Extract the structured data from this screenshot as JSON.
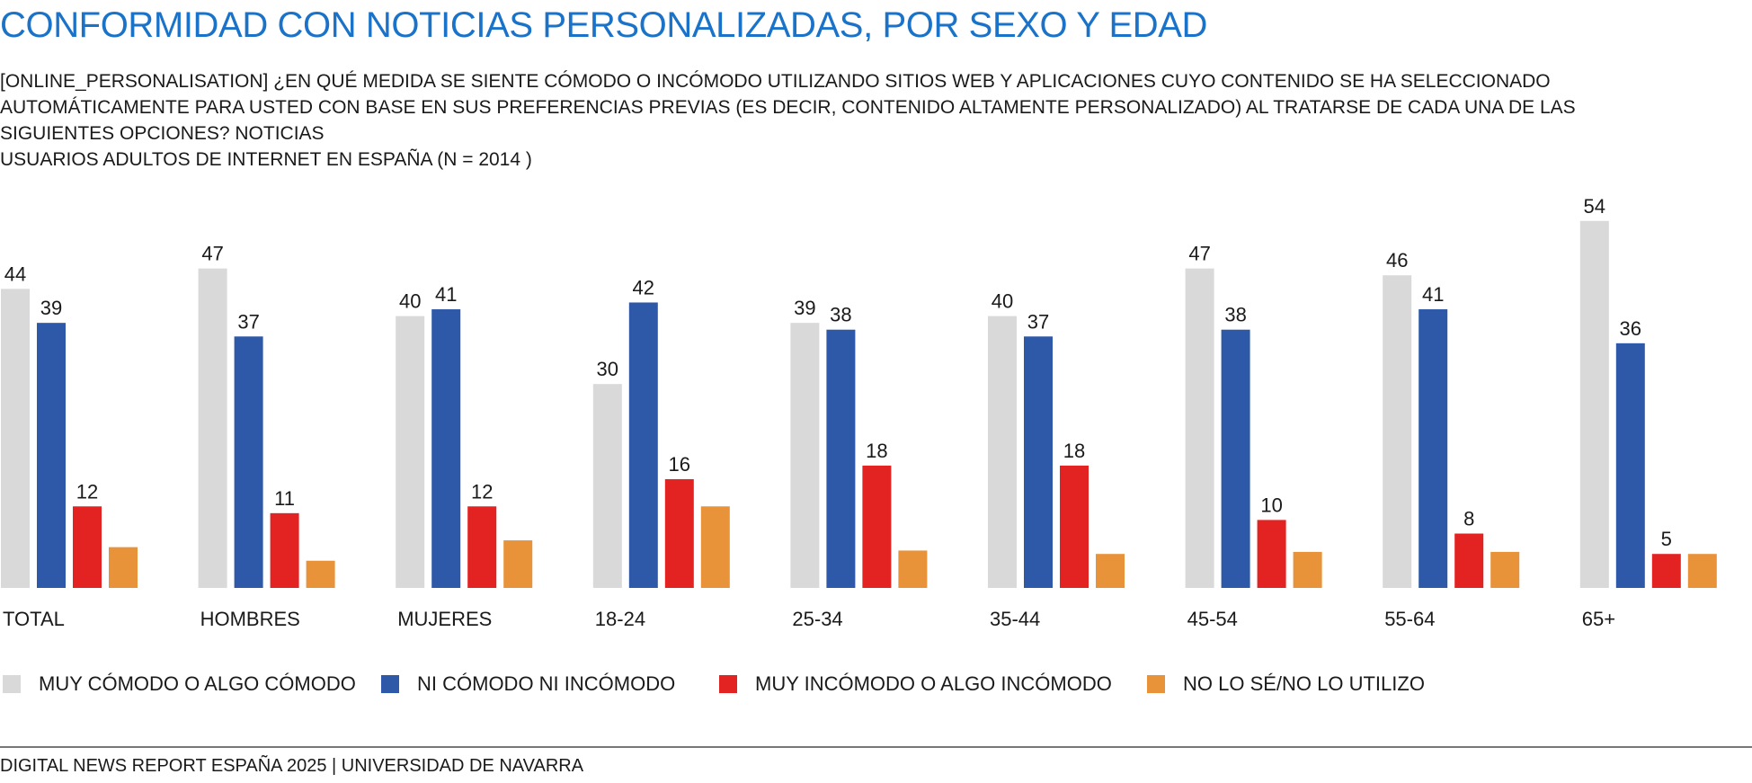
{
  "title": "CONFORMIDAD CON NOTICIAS PERSONALIZADAS, POR SEXO Y EDAD",
  "subtitle_lines": [
    "[ONLINE_PERSONALISATION] ¿EN QUÉ MEDIDA SE SIENTE CÓMODO O INCÓMODO UTILIZANDO SITIOS WEB Y APLICACIONES CUYO CONTENIDO SE HA SELECCIONADO",
    "AUTOMÁTICAMENTE PARA USTED CON BASE EN SUS PREFERENCIAS PREVIAS (ES DECIR, CONTENIDO ALTAMENTE PERSONALIZADO) AL TRATARSE DE CADA UNA DE LAS",
    "SIGUIENTES OPCIONES? NOTICIAS",
    "USUARIOS ADULTOS DE INTERNET EN ESPAÑA (N = 2014 )"
  ],
  "footer": "DIGITAL NEWS REPORT ESPAÑA 2025 | UNIVERSIDAD DE NAVARRA",
  "chart_data": {
    "type": "bar",
    "categories": [
      "TOTAL",
      "HOMBRES",
      "MUJERES",
      "18-24",
      "25-34",
      "35-44",
      "45-54",
      "55-64",
      "65+"
    ],
    "series": [
      {
        "name": "MUY CÓMODO O ALGO CÓMODO",
        "color": "#d9d9d9",
        "labeled": true,
        "values": [
          44,
          47,
          40,
          30,
          39,
          40,
          47,
          46,
          54
        ]
      },
      {
        "name": "NI CÓMODO NI INCÓMODO",
        "color": "#2e59a8",
        "labeled": true,
        "values": [
          39,
          37,
          41,
          42,
          38,
          37,
          38,
          41,
          36
        ]
      },
      {
        "name": "MUY INCÓMODO O ALGO INCÓMODO",
        "color": "#e32322",
        "labeled": true,
        "values": [
          12,
          11,
          12,
          16,
          18,
          18,
          10,
          8,
          5
        ]
      },
      {
        "name": "NO LO SÉ/NO LO UTILIZO",
        "color": "#e8923a",
        "labeled": false,
        "values": [
          6,
          4,
          7,
          12,
          5.5,
          5,
          5.3,
          5.3,
          5
        ]
      }
    ],
    "ylim": [
      0,
      54
    ],
    "grid": false,
    "legend_position": "bottom"
  }
}
